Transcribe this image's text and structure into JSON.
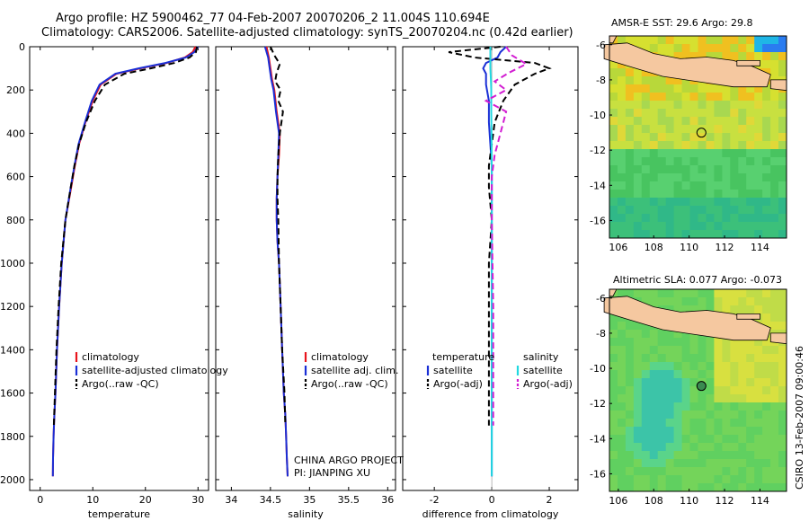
{
  "header": {
    "line1": "Argo profile: HZ 5900462_77 04-Feb-2007 20070206_2 11.004S 110.694E",
    "line2": "Climatology: CARS2006. Satellite-adjusted climatology: synTS_20070204.nc (0.42d earlier)"
  },
  "footer_stamp": "CSIRO 13-Feb-2007 09:00:46",
  "colors": {
    "climatology": "#e8141c",
    "satellite": "#1a2fd6",
    "argo": "#000000",
    "sat_diff": "#22d8e0",
    "argo_adj_diff": "#d21ed2",
    "land": "#f5c8a0"
  },
  "chart_data": [
    {
      "type": "line",
      "panel": "temperature",
      "xlabel": "temperature",
      "ylabel": "",
      "xlim": [
        -2,
        32
      ],
      "ylim": [
        2050,
        0
      ],
      "xticks": [
        0,
        10,
        20,
        30
      ],
      "yticks": [
        0,
        200,
        400,
        600,
        800,
        1000,
        1200,
        1400,
        1600,
        1800,
        2000
      ],
      "legend": [
        "climatology",
        "satellite-adjusted climatology",
        "Argo(..raw -QC)"
      ],
      "series": [
        {
          "name": "climatology",
          "x": [
            29.5,
            29.0,
            27.5,
            24.0,
            19.0,
            14.5,
            11.5,
            10.0,
            8.6,
            7.4,
            6.6,
            5.9,
            4.8,
            4.1,
            3.6,
            3.2,
            2.9,
            2.7,
            2.55,
            2.45,
            2.4
          ],
          "y": [
            0,
            25,
            50,
            75,
            100,
            125,
            175,
            250,
            350,
            450,
            550,
            650,
            800,
            1000,
            1200,
            1400,
            1600,
            1700,
            1800,
            1900,
            1985
          ]
        },
        {
          "name": "satellite-adjusted climatology",
          "x": [
            30.0,
            29.3,
            27.7,
            23.8,
            18.7,
            14.3,
            11.3,
            9.8,
            8.5,
            7.3,
            6.5,
            5.8,
            4.8,
            4.1,
            3.6,
            3.2,
            2.9,
            2.7,
            2.55,
            2.45,
            2.4
          ],
          "y": [
            0,
            25,
            50,
            75,
            100,
            125,
            175,
            250,
            350,
            450,
            550,
            650,
            800,
            1000,
            1200,
            1400,
            1600,
            1700,
            1800,
            1900,
            1985
          ]
        },
        {
          "name": "Argo(..raw -QC)",
          "x": [
            29.8,
            29.6,
            28.4,
            25.5,
            21.0,
            16.0,
            12.3,
            10.4,
            8.7,
            7.4,
            6.5,
            5.8,
            4.8,
            4.0,
            3.5,
            3.1,
            2.8,
            2.6
          ],
          "y": [
            0,
            25,
            50,
            75,
            100,
            125,
            175,
            250,
            350,
            450,
            550,
            650,
            800,
            1000,
            1200,
            1400,
            1600,
            1750
          ]
        }
      ]
    },
    {
      "type": "line",
      "panel": "salinity",
      "xlabel": "salinity",
      "xlim": [
        33.8,
        36.1
      ],
      "ylim": [
        2050,
        0
      ],
      "xticks": [
        34,
        34.5,
        35,
        35.5,
        36
      ],
      "legend": [
        "climatology",
        "satellite adj. clim.",
        "Argo(..raw -QC)"
      ],
      "annotation": [
        "CHINA ARGO PROJECT",
        "PI: JIANPING XU"
      ],
      "series": [
        {
          "name": "climatology",
          "x": [
            34.45,
            34.48,
            34.5,
            34.52,
            34.55,
            34.58,
            34.62,
            34.61,
            34.59,
            34.58,
            34.58,
            34.59,
            34.61,
            34.63,
            34.65,
            34.67,
            34.69,
            34.7,
            34.71,
            34.72
          ],
          "y": [
            0,
            50,
            100,
            150,
            200,
            300,
            400,
            500,
            600,
            700,
            800,
            900,
            1000,
            1200,
            1400,
            1600,
            1700,
            1800,
            1900,
            1985
          ]
        },
        {
          "name": "satellite adj. clim.",
          "x": [
            34.43,
            34.47,
            34.49,
            34.51,
            34.54,
            34.57,
            34.61,
            34.6,
            34.59,
            34.58,
            34.58,
            34.59,
            34.61,
            34.63,
            34.65,
            34.67,
            34.69,
            34.7,
            34.71,
            34.72
          ],
          "y": [
            0,
            50,
            100,
            150,
            200,
            300,
            400,
            500,
            600,
            700,
            800,
            900,
            1000,
            1200,
            1400,
            1600,
            1700,
            1800,
            1900,
            1985
          ]
        },
        {
          "name": "Argo(..raw -QC)",
          "x": [
            34.5,
            34.55,
            34.62,
            34.58,
            34.56,
            34.63,
            34.6,
            34.66,
            34.62,
            34.6,
            34.59,
            34.59,
            34.6,
            34.61,
            34.63,
            34.65,
            34.68,
            34.69
          ],
          "y": [
            0,
            40,
            80,
            120,
            160,
            200,
            250,
            300,
            400,
            500,
            600,
            700,
            800,
            1000,
            1200,
            1400,
            1600,
            1750
          ]
        }
      ]
    },
    {
      "type": "line",
      "panel": "difference",
      "xlabel": "difference from climatology",
      "xlim": [
        -3.1,
        3.0
      ],
      "ylim": [
        2050,
        0
      ],
      "xticks": [
        -2,
        0,
        2
      ],
      "legend": [
        "temperature",
        "satellite",
        "Argo(-adj)",
        "salinity",
        "satellite",
        "Argo(-adj)"
      ],
      "series": [
        {
          "name": "temperature satellite",
          "x": [
            0.5,
            0.3,
            0.2,
            -0.2,
            -0.3,
            -0.2,
            -0.2,
            -0.1,
            -0.1,
            -0.05,
            0,
            0,
            0,
            0,
            0,
            0,
            0
          ],
          "y": [
            0,
            25,
            50,
            75,
            100,
            125,
            175,
            250,
            350,
            450,
            550,
            650,
            800,
            1000,
            1400,
            1800,
            1985
          ]
        },
        {
          "name": "temperature Argo(-adj)",
          "x": [
            0.3,
            -1.5,
            -0.6,
            1.5,
            2.0,
            1.5,
            0.8,
            0.4,
            0.1,
            0,
            -0.1,
            -0.1,
            0,
            -0.1,
            -0.1,
            -0.1,
            -0.1,
            -0.1
          ],
          "y": [
            0,
            25,
            50,
            75,
            100,
            125,
            175,
            250,
            350,
            450,
            550,
            650,
            800,
            1000,
            1200,
            1400,
            1600,
            1750
          ]
        },
        {
          "name": "salinity satellite",
          "x": [
            -0.05,
            -0.05,
            -0.05,
            -0.03,
            -0.02,
            -0.02,
            -0.01,
            0,
            0,
            0,
            0
          ],
          "y": [
            0,
            50,
            100,
            150,
            200,
            300,
            400,
            600,
            1000,
            1500,
            1985
          ]
        },
        {
          "name": "salinity Argo(-adj)",
          "x": [
            0.5,
            0.7,
            1.2,
            0.6,
            0.1,
            0.5,
            -0.2,
            0.5,
            0.3,
            0.1,
            0,
            0,
            0.05,
            0.05
          ],
          "y": [
            0,
            40,
            80,
            120,
            160,
            200,
            250,
            300,
            400,
            500,
            600,
            800,
            1200,
            1750
          ]
        }
      ]
    },
    {
      "type": "heatmap",
      "panel": "sst-map",
      "title": "AMSR-E SST: 29.6 Argo: 29.8",
      "xlim": [
        105.5,
        115.5
      ],
      "ylim": [
        -17,
        -5.5
      ],
      "xticks": [
        106,
        108,
        110,
        112,
        114
      ],
      "yticks": [
        -6,
        -8,
        -10,
        -12,
        -14,
        -16
      ],
      "argo_position": [
        110.694,
        -11.004
      ]
    },
    {
      "type": "heatmap",
      "panel": "sla-map",
      "title": "Altimetric SLA: 0.077 Argo: -0.073",
      "xlim": [
        105.5,
        115.5
      ],
      "ylim": [
        -17,
        -5.5
      ],
      "xticks": [
        106,
        108,
        110,
        112,
        114
      ],
      "yticks": [
        -6,
        -8,
        -10,
        -12,
        -14,
        -16
      ],
      "argo_position": [
        110.694,
        -11.004
      ]
    }
  ]
}
